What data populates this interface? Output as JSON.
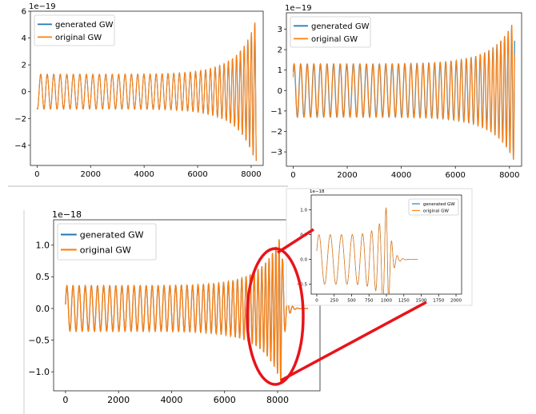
{
  "chart_data": [
    {
      "type": "line",
      "scale_label": "1e−19",
      "xlim": [
        -250,
        8450
      ],
      "ylim": [
        -5.5,
        6.0
      ],
      "xticks": [
        0,
        2000,
        4000,
        6000,
        8000
      ],
      "xtick_labels": [
        "0",
        "2000",
        "4000",
        "6000",
        "8000"
      ],
      "yticks": [
        -4,
        -2,
        0,
        2,
        4,
        6
      ],
      "ytick_labels": [
        "−4",
        "−2",
        "0",
        "2",
        "4",
        "6"
      ],
      "legend_position": "top-left",
      "signal": {
        "x_start": 0,
        "x_end": 8192,
        "start_phase_deg": 250,
        "amp_start": 1.3,
        "amp_end": 5.5,
        "cycles": 40,
        "phase_offset_deg": 0,
        "ringdown_end": 8192
      },
      "series": [
        {
          "name": "generated GW",
          "color": "#1f77b4"
        },
        {
          "name": "original GW",
          "color": "#ff7f0e"
        }
      ]
    },
    {
      "type": "line",
      "scale_label": "1e−19",
      "xlim": [
        -250,
        8450
      ],
      "ylim": [
        -3.7,
        3.8
      ],
      "xticks": [
        0,
        2000,
        4000,
        6000,
        8000
      ],
      "xtick_labels": [
        "0",
        "2000",
        "4000",
        "6000",
        "8000"
      ],
      "yticks": [
        -3,
        -2,
        -1,
        0,
        1,
        2,
        3
      ],
      "ytick_labels": [
        "−3",
        "−2",
        "−1",
        "0",
        "1",
        "2",
        "3"
      ],
      "legend_position": "top-left",
      "signal": {
        "x_start": 0,
        "x_end": 8192,
        "start_phase_deg": 30,
        "amp_start": 1.3,
        "amp_end": 3.5,
        "cycles": 40,
        "phase_offset_deg": 14,
        "ringdown_end": 8192
      },
      "series": [
        {
          "name": "generated GW",
          "color": "#1f77b4"
        },
        {
          "name": "original GW",
          "color": "#ff7f0e"
        }
      ]
    },
    {
      "type": "line",
      "scale_label": "1e−18",
      "xlim": [
        -450,
        9600
      ],
      "ylim": [
        -1.3,
        1.4
      ],
      "xticks": [
        0,
        2000,
        4000,
        6000,
        8000
      ],
      "xtick_labels": [
        "0",
        "2000",
        "4000",
        "6000",
        "8000"
      ],
      "yticks": [
        -1.0,
        -0.5,
        0.0,
        0.5,
        1.0
      ],
      "ytick_labels": [
        "−1.0",
        "−0.5",
        "0.0",
        "0.5",
        "1.0"
      ],
      "legend_position": "top-left",
      "signal": {
        "x_start": 0,
        "x_end": 8150,
        "start_phase_deg": 10,
        "amp_start": 0.36,
        "amp_end": 1.2,
        "cycles": 42,
        "phase_offset_deg": 0,
        "ringdown_end": 9150
      },
      "series": [
        {
          "name": "generated GW",
          "color": "#1f77b4"
        },
        {
          "name": "original GW",
          "color": "#ff7f0e"
        }
      ]
    },
    {
      "type": "line",
      "scale_label": "1e−18",
      "xlim": [
        -80,
        2080
      ],
      "ylim": [
        -0.7,
        1.3
      ],
      "xticks": [
        0,
        250,
        500,
        750,
        1000,
        1250,
        1500,
        1750,
        2000
      ],
      "xtick_labels": [
        "0",
        "250",
        "500",
        "750",
        "1000",
        "1250",
        "1500",
        "1750",
        "2000"
      ],
      "yticks": [
        -0.5,
        0.0,
        0.5,
        1.0
      ],
      "ytick_labels": [
        "−0.5",
        "0.0",
        "0.5",
        "1.0"
      ],
      "legend_position": "top-right",
      "signal": {
        "x_start": 0,
        "x_end": 1020,
        "start_phase_deg": 20,
        "amp_start": 0.5,
        "amp_end": 1.2,
        "cycles": 7.5,
        "phase_offset_deg": 0,
        "ringdown_end": 1450
      },
      "series": [
        {
          "name": "generated GW",
          "color": "#1f77b4"
        },
        {
          "name": "original GW",
          "color": "#ff7f0e"
        }
      ]
    }
  ],
  "annotation": {
    "highlight_color": "#e8141b"
  }
}
